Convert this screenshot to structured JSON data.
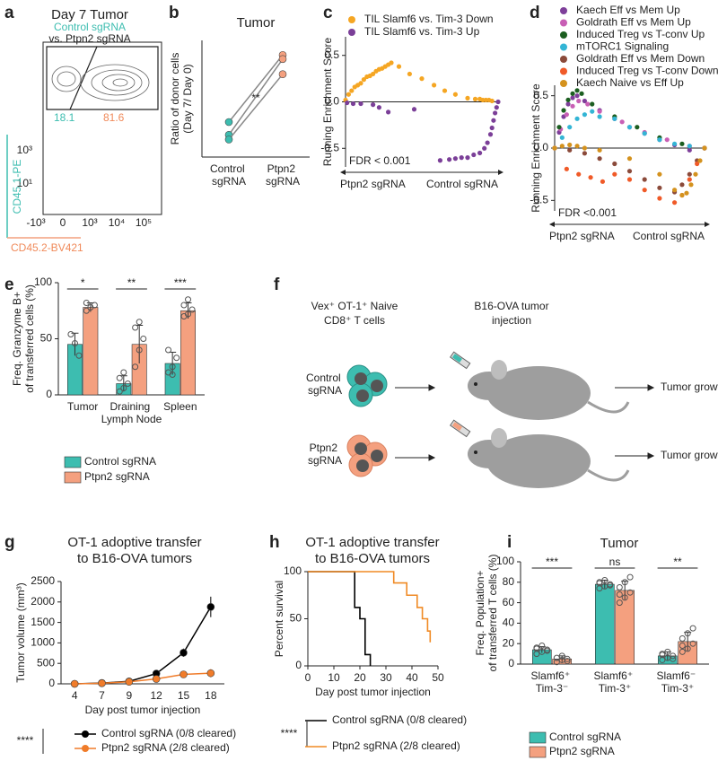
{
  "panel_labels": [
    "a",
    "b",
    "c",
    "d",
    "e",
    "f",
    "g",
    "h",
    "i"
  ],
  "flow_plot": {
    "title": "Day 7 Tumor",
    "control_label": "Control sgRNA",
    "vs_label": "vs. Ptpn2 sgRNA",
    "gate_values": [
      18.1,
      81.6
    ],
    "xlabel": "CD45.2-BV421",
    "ylabel": "CD45.1-PE",
    "xticks": [
      "-10³",
      "0",
      "10³",
      "10⁴",
      "10⁵"
    ],
    "yticks": [
      "10³",
      "10¹"
    ]
  },
  "schematic": {
    "cells_label": [
      "Vex⁺ OT-1⁺ Naive",
      "CD8⁺ T cells"
    ],
    "injection_label": [
      "B16-OVA tumor",
      "injection"
    ],
    "groups": [
      "Control sgRNA",
      "Ptpn2 sgRNA"
    ],
    "outcome": [
      "Tumor growth",
      "Tumor growth"
    ]
  },
  "chart_data": [
    {
      "type": "line",
      "title": "Tumor",
      "ylabel": [
        "Ratio of donor cells",
        "(Day 7/ Day 0)"
      ],
      "categories": [
        "Control sgRNA",
        "Ptpn2 sgRNA"
      ],
      "series": [
        {
          "color": "#888888",
          "values": [
            0.6,
            1.75
          ]
        },
        {
          "color": "#888888",
          "values": [
            0.38,
            1.68
          ]
        },
        {
          "color": "#888888",
          "values": [
            0.3,
            1.42
          ]
        }
      ],
      "marker_colors": [
        "#3dbdb0",
        "#f4a07f"
      ],
      "ylim": [
        0,
        2
      ],
      "significance": "**"
    },
    {
      "type": "scatter",
      "ylabel": "Running Enrichment Score",
      "annotation": "FDR < 0.001",
      "x_labels": [
        "Ptpn2 sgRNA",
        "Control sgRNA"
      ],
      "xlim": [
        0,
        100
      ],
      "ylim": [
        -0.7,
        0.7
      ],
      "yticks": [
        0.5,
        {
          "value": 0,
          "label": "0.0"
        },
        -0.5
      ],
      "series": [
        {
          "name": "TIL Slamf6 vs. Tim-3 Down",
          "color": "#f5a623",
          "x": [
            0,
            2,
            4,
            6,
            8,
            10,
            12,
            14,
            16,
            18,
            20,
            22,
            24,
            26,
            28,
            30,
            35,
            42,
            50,
            58,
            65,
            72,
            80,
            85,
            88,
            90,
            92,
            94,
            96
          ],
          "values": [
            0.02,
            0.08,
            0.12,
            0.16,
            0.18,
            0.2,
            0.24,
            0.27,
            0.28,
            0.3,
            0.33,
            0.35,
            0.36,
            0.38,
            0.4,
            0.42,
            0.38,
            0.3,
            0.25,
            0.18,
            0.12,
            0.08,
            0.04,
            0.03,
            0.03,
            0.02,
            0.02,
            0.02,
            0.01
          ]
        },
        {
          "name": "TIL Slamf6 vs. Tim-3 Up",
          "color": "#7b3f98",
          "x": [
            1,
            5,
            10,
            18,
            22,
            28,
            45,
            62,
            68,
            72,
            76,
            80,
            84,
            88,
            91,
            93,
            95,
            96,
            97,
            98,
            99,
            100
          ],
          "values": [
            -0.01,
            -0.02,
            -0.02,
            -0.03,
            -0.06,
            -0.11,
            -0.08,
            -0.63,
            -0.62,
            -0.61,
            -0.6,
            -0.6,
            -0.57,
            -0.55,
            -0.5,
            -0.44,
            -0.35,
            -0.28,
            -0.2,
            -0.12,
            -0.06,
            0
          ]
        }
      ]
    },
    {
      "type": "scatter",
      "ylabel": "Running Enrichment Score",
      "annotation": "FDR <0.001",
      "x_labels": [
        "Ptpn2 sgRNA",
        "Control sgRNA"
      ],
      "xlim": [
        0,
        100
      ],
      "ylim": [
        -0.6,
        0.6
      ],
      "yticks": [
        0.5,
        {
          "value": 0,
          "label": "0.0"
        },
        -0.5
      ],
      "series": [
        {
          "name": "Kaech Eff vs Mem Up",
          "color": "#7e3f9a",
          "x": [
            0,
            3,
            6,
            9,
            12,
            15,
            20,
            30,
            40,
            50,
            60,
            70,
            80,
            90,
            100
          ],
          "values": [
            0,
            0.15,
            0.3,
            0.42,
            0.48,
            0.5,
            0.45,
            0.36,
            0.28,
            0.2,
            0.14,
            0.08,
            0.03,
            -0.02,
            0
          ]
        },
        {
          "name": "Goldrath Eff vs Mem Up",
          "color": "#c85fb5",
          "x": [
            0,
            4,
            8,
            12,
            16,
            22,
            30,
            45,
            60,
            75,
            90,
            100
          ],
          "values": [
            0,
            0.18,
            0.32,
            0.4,
            0.45,
            0.42,
            0.35,
            0.25,
            0.15,
            0.08,
            0.02,
            0
          ]
        },
        {
          "name": "Induced Treg vs T-conv Up",
          "color": "#1b5e20",
          "x": [
            0,
            3,
            6,
            9,
            12,
            15,
            18,
            25,
            40,
            55,
            70,
            85,
            100
          ],
          "values": [
            0,
            0.2,
            0.36,
            0.46,
            0.52,
            0.55,
            0.52,
            0.42,
            0.3,
            0.2,
            0.1,
            0.04,
            0
          ]
        },
        {
          "name": "mTORC1 Signaling",
          "color": "#33b5d5",
          "x": [
            0,
            5,
            10,
            15,
            20,
            25,
            30,
            40,
            50,
            60,
            70,
            80,
            90,
            100
          ],
          "values": [
            0,
            0.1,
            0.2,
            0.28,
            0.32,
            0.35,
            0.3,
            0.28,
            0.2,
            0.14,
            0.08,
            0.04,
            0.02,
            0
          ]
        },
        {
          "name": "Goldrath Eff vs Mem Down",
          "color": "#8b4a3a",
          "x": [
            0,
            10,
            20,
            30,
            40,
            50,
            60,
            70,
            80,
            85,
            90,
            95,
            100
          ],
          "values": [
            0,
            -0.02,
            -0.05,
            -0.1,
            -0.15,
            -0.22,
            -0.3,
            -0.38,
            -0.42,
            -0.35,
            -0.25,
            -0.12,
            0
          ]
        },
        {
          "name": "Induced Treg vs T-conv Down",
          "color": "#f05a28",
          "x": [
            0,
            8,
            16,
            24,
            32,
            40,
            50,
            60,
            70,
            80,
            85,
            90,
            95,
            100
          ],
          "values": [
            0,
            -0.2,
            -0.25,
            -0.28,
            -0.32,
            -0.25,
            -0.3,
            -0.4,
            -0.48,
            -0.52,
            -0.45,
            -0.3,
            -0.15,
            0
          ]
        },
        {
          "name": "Kaech Naive vs Eff Up",
          "color": "#d4921e",
          "x": [
            0,
            5,
            10,
            15,
            20,
            30,
            50,
            70,
            80,
            85,
            88,
            91,
            94,
            97,
            100
          ],
          "values": [
            0,
            0.02,
            0.03,
            0.02,
            0,
            -0.02,
            -0.1,
            -0.25,
            -0.4,
            -0.45,
            -0.43,
            -0.35,
            -0.25,
            -0.12,
            0
          ]
        }
      ]
    },
    {
      "type": "bar",
      "ylabel": [
        "Freq. Granzyme B+",
        "of transferred cells (%)"
      ],
      "categories": [
        "Tumor",
        "Draining Lymph Node",
        "Spleen"
      ],
      "ylim": [
        0,
        100
      ],
      "yticks": [
        0,
        50,
        100
      ],
      "significance": [
        "*",
        "**",
        "***"
      ],
      "series": [
        {
          "name": "Control sgRNA",
          "color": "#3dbdb0",
          "values": [
            45,
            10,
            28
          ],
          "errors": [
            10,
            7,
            10
          ],
          "points": [
            [
              54,
              46,
              35
            ],
            [
              3,
              6,
              10,
              15,
              20
            ],
            [
              20,
              25,
              33,
              40,
              18
            ]
          ]
        },
        {
          "name": "Ptpn2 sgRNA",
          "color": "#f4a07f",
          "values": [
            78,
            45,
            75
          ],
          "errors": [
            4,
            17,
            7
          ],
          "points": [
            [
              75,
              78,
              80,
              82
            ],
            [
              25,
              40,
              50,
              60,
              65
            ],
            [
              70,
              72,
              76,
              80,
              85
            ]
          ]
        }
      ]
    },
    {
      "type": "line",
      "title": [
        "OT-1 adoptive transfer",
        "to B16-OVA tumors"
      ],
      "xlabel": "Day post tumor injection",
      "ylabel": "Tumor volume (mm³)",
      "categories": [
        "4",
        "7",
        "9",
        "12",
        "15",
        "18"
      ],
      "ylim": [
        0,
        2500
      ],
      "yticks": [
        0,
        500,
        1000,
        1500,
        2000,
        2500
      ],
      "annotation": "****",
      "series": [
        {
          "name": "Control sgRNA (0/8 cleared)",
          "color": "#000000",
          "values": [
            0,
            20,
            60,
            250,
            760,
            1880
          ],
          "errors": [
            3,
            10,
            20,
            30,
            100,
            250
          ]
        },
        {
          "name": "Ptpn2 sgRNA (2/8 cleared)",
          "color": "#f07c2a",
          "values": [
            0,
            15,
            50,
            120,
            230,
            260
          ],
          "errors": [
            3,
            8,
            15,
            30,
            80,
            100
          ]
        }
      ]
    },
    {
      "type": "step",
      "title": [
        "OT-1 adoptive transfer",
        "to B16-OVA tumors"
      ],
      "xlabel": "Day post tumor injection",
      "ylabel": "Percent survival",
      "xlim": [
        0,
        50
      ],
      "xticks": [
        0,
        10,
        20,
        30,
        40,
        50
      ],
      "ylim": [
        0,
        100
      ],
      "yticks": [
        0,
        50,
        100
      ],
      "annotation": "****",
      "series": [
        {
          "name": "Control sgRNA (0/8 cleared)",
          "color": "#000000",
          "x": [
            0,
            18,
            20,
            22,
            24
          ],
          "values": [
            100,
            62,
            50,
            12,
            0
          ]
        },
        {
          "name": "Ptpn2 sgRNA (2/8 cleared)",
          "color": "#f08a24",
          "x": [
            0,
            33,
            38,
            42,
            44,
            46,
            47
          ],
          "values": [
            100,
            88,
            75,
            62,
            50,
            37,
            25
          ]
        }
      ]
    },
    {
      "type": "bar",
      "title": "Tumor",
      "ylabel": [
        "Freq. Population+",
        "of transferred T cells (%)"
      ],
      "categories": [
        "Slamf6⁺ Tim-3⁻",
        "Slamf6⁺ Tim-3⁺",
        "Slamf6⁻ Tim-3⁺"
      ],
      "ylim": [
        0,
        100
      ],
      "yticks": [
        0,
        20,
        40,
        60,
        80,
        100
      ],
      "significance": [
        "***",
        "ns",
        "**"
      ],
      "series": [
        {
          "name": "Control sgRNA",
          "color": "#3dbdb0",
          "values": [
            14,
            78,
            8
          ],
          "errors": [
            3,
            4,
            4
          ],
          "points": [
            [
              10,
              12,
              14,
              16,
              18,
              13,
              15
            ],
            [
              74,
              76,
              78,
              80,
              82,
              77,
              79
            ],
            [
              4,
              6,
              8,
              10,
              12,
              5,
              9
            ]
          ]
        },
        {
          "name": "Ptpn2 sgRNA",
          "color": "#f4a07f",
          "values": [
            5,
            72,
            22
          ],
          "errors": [
            3,
            9,
            9
          ],
          "points": [
            [
              2,
              4,
              5,
              6,
              8,
              3
            ],
            [
              60,
              65,
              70,
              75,
              80,
              85,
              68
            ],
            [
              12,
              15,
              20,
              25,
              30,
              35,
              18
            ]
          ]
        }
      ]
    }
  ]
}
